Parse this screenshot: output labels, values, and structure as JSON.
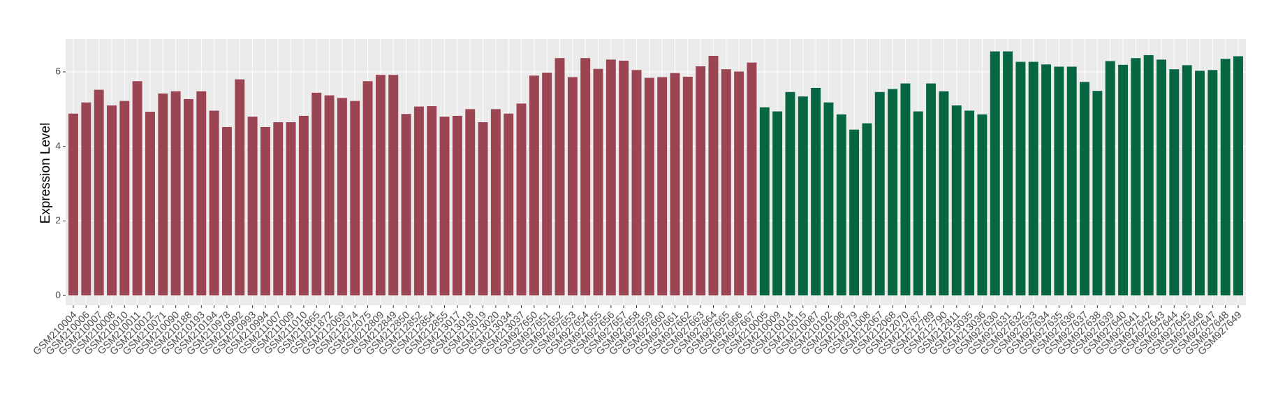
{
  "chart_data": {
    "type": "bar",
    "y_label": "Expression Level",
    "categories": [
      "GSM210004",
      "GSM210006",
      "GSM210007",
      "GSM210008",
      "GSM210010",
      "GSM210011",
      "GSM210012",
      "GSM210071",
      "GSM210090",
      "GSM210188",
      "GSM210193",
      "GSM210194",
      "GSM210978",
      "GSM210992",
      "GSM210993",
      "GSM210994",
      "GSM211007",
      "GSM211009",
      "GSM211010",
      "GSM211865",
      "GSM211872",
      "GSM212069",
      "GSM212074",
      "GSM212075",
      "GSM212809",
      "GSM212849",
      "GSM212850",
      "GSM212852",
      "GSM212854",
      "GSM212855",
      "GSM213017",
      "GSM213018",
      "GSM213019",
      "GSM213020",
      "GSM213034",
      "GSM213037",
      "GSM927650",
      "GSM927651",
      "GSM927652",
      "GSM927653",
      "GSM927654",
      "GSM927655",
      "GSM927656",
      "GSM927657",
      "GSM927658",
      "GSM927659",
      "GSM927660",
      "GSM927661",
      "GSM927662",
      "GSM927663",
      "GSM927664",
      "GSM927665",
      "GSM927666",
      "GSM927667",
      "GSM210005",
      "GSM210009",
      "GSM210014",
      "GSM210015",
      "GSM210087",
      "GSM210192",
      "GSM210196",
      "GSM210979",
      "GSM211008",
      "GSM212067",
      "GSM212068",
      "GSM212070",
      "GSM212787",
      "GSM212789",
      "GSM212790",
      "GSM212811",
      "GSM213035",
      "GSM213036",
      "GSM927630",
      "GSM927631",
      "GSM927632",
      "GSM927633",
      "GSM927634",
      "GSM927635",
      "GSM927636",
      "GSM927637",
      "GSM927638",
      "GSM927639",
      "GSM927640",
      "GSM927641",
      "GSM927642",
      "GSM927643",
      "GSM927644",
      "GSM927645",
      "GSM927646",
      "GSM927647",
      "GSM927648",
      "GSM927649"
    ],
    "values": [
      4.88,
      5.18,
      5.52,
      5.1,
      5.22,
      5.75,
      4.93,
      5.42,
      5.48,
      5.27,
      5.48,
      4.96,
      4.52,
      5.8,
      4.8,
      4.52,
      4.65,
      4.65,
      4.82,
      5.44,
      5.37,
      5.3,
      5.22,
      5.75,
      5.92,
      5.92,
      4.87,
      5.07,
      5.08,
      4.8,
      4.82,
      5.0,
      4.65,
      5.0,
      4.88,
      5.15,
      5.9,
      5.98,
      6.37,
      5.86,
      6.37,
      6.08,
      6.33,
      6.3,
      6.05,
      5.84,
      5.86,
      5.97,
      5.87,
      6.15,
      6.43,
      6.07,
      6.01,
      6.25,
      5.05,
      4.94,
      5.46,
      5.34,
      5.57,
      5.18,
      4.86,
      4.45,
      4.62,
      5.46,
      5.54,
      5.69,
      4.94,
      5.69,
      5.48,
      5.1,
      4.96,
      4.86,
      6.55,
      6.55,
      6.27,
      6.27,
      6.2,
      6.14,
      6.14,
      5.73,
      5.49,
      6.29,
      6.19,
      6.37,
      6.45,
      6.33,
      6.07,
      6.18,
      6.03,
      6.05,
      6.35,
      6.42
    ],
    "colors": [
      "#9b4452",
      "#9b4452",
      "#9b4452",
      "#9b4452",
      "#9b4452",
      "#9b4452",
      "#9b4452",
      "#9b4452",
      "#9b4452",
      "#9b4452",
      "#9b4452",
      "#9b4452",
      "#9b4452",
      "#9b4452",
      "#9b4452",
      "#9b4452",
      "#9b4452",
      "#9b4452",
      "#9b4452",
      "#9b4452",
      "#9b4452",
      "#9b4452",
      "#9b4452",
      "#9b4452",
      "#9b4452",
      "#9b4452",
      "#9b4452",
      "#9b4452",
      "#9b4452",
      "#9b4452",
      "#9b4452",
      "#9b4452",
      "#9b4452",
      "#9b4452",
      "#9b4452",
      "#9b4452",
      "#9b4452",
      "#9b4452",
      "#9b4452",
      "#9b4452",
      "#9b4452",
      "#9b4452",
      "#9b4452",
      "#9b4452",
      "#9b4452",
      "#9b4452",
      "#9b4452",
      "#9b4452",
      "#9b4452",
      "#9b4452",
      "#9b4452",
      "#9b4452",
      "#9b4452",
      "#9b4452",
      "#076642",
      "#076642",
      "#076642",
      "#076642",
      "#076642",
      "#076642",
      "#076642",
      "#076642",
      "#076642",
      "#076642",
      "#076642",
      "#076642",
      "#076642",
      "#076642",
      "#076642",
      "#076642",
      "#076642",
      "#076642",
      "#076642",
      "#076642",
      "#076642",
      "#076642",
      "#076642",
      "#076642",
      "#076642",
      "#076642",
      "#076642",
      "#076642",
      "#076642",
      "#076642",
      "#076642",
      "#076642",
      "#076642",
      "#076642",
      "#076642",
      "#076642",
      "#076642",
      "#076642"
    ],
    "ylim": [
      -0.26,
      6.88
    ],
    "yticks": [
      0,
      2,
      4,
      6
    ],
    "grid": true
  }
}
